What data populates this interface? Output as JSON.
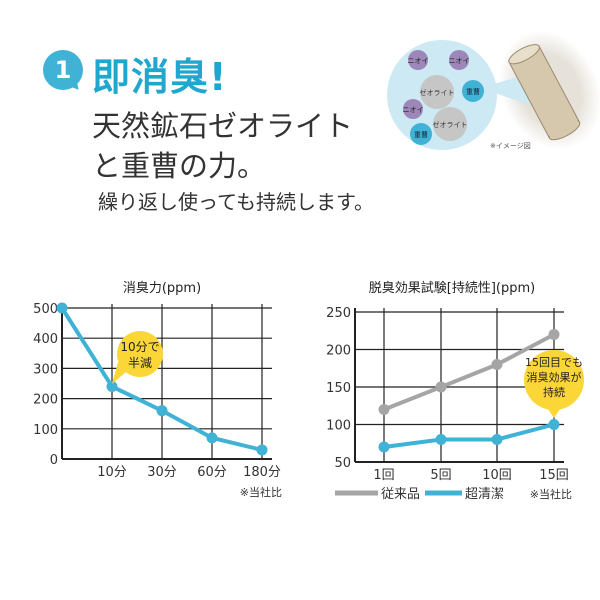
{
  "header": {
    "badge_number": "1",
    "title": "即消臭!",
    "subtitle_line1": "天然鉱石ゼオライト",
    "subtitle_line2": "と重曹の力。",
    "tagline": "繰り返し使っても持続します。"
  },
  "illustration": {
    "labels": {
      "odor": "ニオイ",
      "zeolite": "ゼオライト",
      "baking_soda": "重曹"
    },
    "caption": "※イメージ図"
  },
  "colors": {
    "accent": "#3fb2d6",
    "callout": "#fbd637",
    "gray_series": "#a5a5a5"
  },
  "chart_data": [
    {
      "type": "line",
      "title": "消臭力(ppm)",
      "categories": [
        "",
        "10分",
        "30分",
        "60分",
        "180分"
      ],
      "series": [
        {
          "values": [
            500,
            240,
            160,
            70,
            30
          ],
          "color": "#3fb2d6"
        }
      ],
      "ylim": [
        0,
        500
      ],
      "yticks": [
        0,
        100,
        200,
        300,
        400,
        500
      ],
      "grid": true,
      "annotation": {
        "text_line1": "10分で",
        "text_line2": "半減"
      },
      "note": "※当社比"
    },
    {
      "type": "line",
      "title": "脱臭効果試験[持続性](ppm)",
      "categories": [
        "1回",
        "5回",
        "10回",
        "15回"
      ],
      "series": [
        {
          "name": "従来品",
          "values": [
            120,
            150,
            180,
            220
          ],
          "color": "#a5a5a5"
        },
        {
          "name": "超清潔",
          "values": [
            70,
            80,
            80,
            100
          ],
          "color": "#3fb2d6"
        }
      ],
      "ylim": [
        50,
        250
      ],
      "yticks": [
        50,
        100,
        150,
        200,
        250
      ],
      "grid": true,
      "annotation": {
        "text_line1": "15回目でも",
        "text_line2": "消臭効果が",
        "text_line3": "持続"
      },
      "legend": "bottom",
      "note": "※当社比"
    }
  ]
}
